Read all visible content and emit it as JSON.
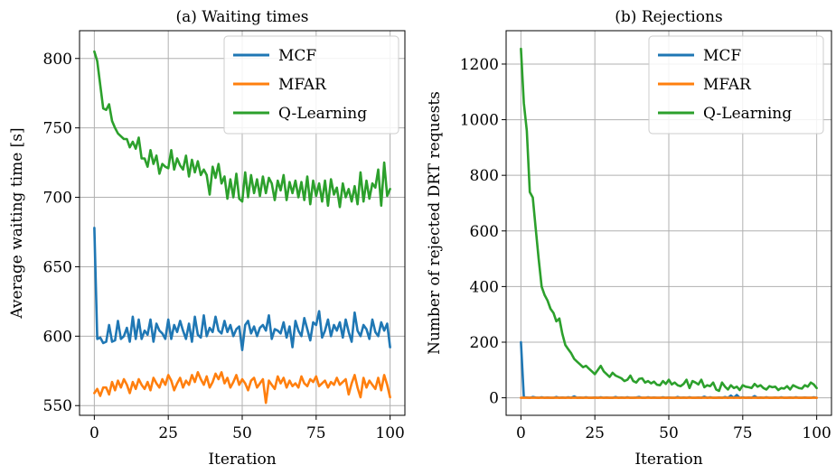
{
  "colors": {
    "MCF": "#1f77b4",
    "MFAR": "#ff7f0e",
    "Q-Learning": "#2ca02c"
  },
  "chart_data": [
    {
      "type": "line",
      "title": "(a) Waiting times",
      "xlabel": "Iteration",
      "ylabel": "Average waiting time [s]",
      "xlim": [
        -5,
        105
      ],
      "ylim": [
        543,
        820
      ],
      "xticks": [
        0,
        25,
        50,
        75,
        100
      ],
      "yticks": [
        550,
        600,
        650,
        700,
        750,
        800
      ],
      "grid": true,
      "legend": "top-right",
      "series": [
        {
          "name": "MCF",
          "values": [
            678,
            598,
            599,
            595,
            596,
            608,
            596,
            597,
            611,
            598,
            600,
            606,
            596,
            614,
            598,
            612,
            598,
            604,
            601,
            612,
            596,
            609,
            604,
            602,
            598,
            612,
            598,
            608,
            603,
            611,
            604,
            598,
            609,
            596,
            614,
            601,
            599,
            615,
            600,
            606,
            603,
            614,
            604,
            602,
            611,
            603,
            608,
            600,
            605,
            607,
            590,
            608,
            611,
            602,
            607,
            600,
            606,
            608,
            604,
            615,
            598,
            605,
            604,
            602,
            610,
            599,
            607,
            592,
            611,
            604,
            600,
            613,
            605,
            597,
            610,
            608,
            618,
            599,
            604,
            612,
            600,
            608,
            604,
            610,
            599,
            612,
            603,
            596,
            617,
            604,
            600,
            608,
            605,
            598,
            612,
            603,
            600,
            610,
            604,
            609,
            592
          ]
        },
        {
          "name": "MFAR",
          "values": [
            559,
            562,
            557,
            563,
            563,
            558,
            567,
            561,
            568,
            563,
            569,
            565,
            559,
            567,
            562,
            569,
            565,
            562,
            567,
            561,
            570,
            566,
            563,
            569,
            565,
            572,
            568,
            561,
            566,
            570,
            563,
            568,
            565,
            572,
            567,
            574,
            569,
            565,
            571,
            563,
            567,
            573,
            569,
            574,
            566,
            570,
            563,
            567,
            572,
            565,
            569,
            566,
            561,
            568,
            570,
            563,
            566,
            569,
            552,
            568,
            565,
            562,
            571,
            566,
            570,
            563,
            568,
            564,
            566,
            563,
            571,
            566,
            564,
            569,
            567,
            571,
            564,
            566,
            568,
            563,
            567,
            565,
            570,
            565,
            567,
            569,
            558,
            566,
            572,
            563,
            556,
            570,
            563,
            568,
            565,
            562,
            570,
            561,
            572,
            565,
            556
          ]
        },
        {
          "name": "Q-Learning",
          "values": [
            805,
            798,
            781,
            764,
            763,
            767,
            755,
            750,
            746,
            744,
            742,
            742,
            736,
            740,
            735,
            743,
            728,
            728,
            722,
            734,
            724,
            730,
            717,
            724,
            722,
            721,
            734,
            720,
            728,
            723,
            720,
            730,
            715,
            727,
            718,
            726,
            716,
            720,
            716,
            702,
            722,
            714,
            724,
            710,
            715,
            699,
            713,
            700,
            717,
            699,
            697,
            718,
            700,
            716,
            703,
            713,
            701,
            715,
            703,
            714,
            710,
            698,
            712,
            705,
            716,
            698,
            711,
            703,
            712,
            700,
            711,
            698,
            715,
            695,
            712,
            701,
            710,
            697,
            712,
            694,
            713,
            702,
            707,
            693,
            710,
            700,
            706,
            697,
            708,
            695,
            718,
            697,
            712,
            699,
            710,
            707,
            720,
            694,
            725,
            701,
            706
          ]
        }
      ]
    },
    {
      "type": "line",
      "title": "(b) Rejections",
      "xlabel": "Iteration",
      "ylabel": "Number of rejected DRT requests",
      "xlim": [
        -5,
        105
      ],
      "ylim": [
        -63,
        1320
      ],
      "xticks": [
        0,
        25,
        50,
        75,
        100
      ],
      "yticks": [
        0,
        200,
        400,
        600,
        800,
        1000,
        1200
      ],
      "grid": true,
      "legend": "top-right",
      "series": [
        {
          "name": "MCF",
          "values": [
            200,
            2,
            1,
            0,
            3,
            1,
            0,
            2,
            0,
            1,
            0,
            0,
            3,
            0,
            1,
            0,
            2,
            0,
            5,
            0,
            1,
            0,
            2,
            0,
            0,
            1,
            0,
            2,
            0,
            1,
            0,
            0,
            3,
            0,
            1,
            0,
            2,
            0,
            0,
            1,
            3,
            0,
            0,
            2,
            0,
            1,
            0,
            0,
            2,
            0,
            1,
            0,
            0,
            3,
            0,
            1,
            0,
            2,
            0,
            0,
            1,
            0,
            4,
            0,
            2,
            0,
            0,
            1,
            0,
            3,
            0,
            8,
            0,
            10,
            0,
            2,
            0,
            1,
            0,
            6,
            0,
            1,
            0,
            2,
            0,
            0,
            1,
            0,
            2,
            0,
            0,
            1,
            0,
            2,
            0,
            0,
            1,
            0,
            0,
            2,
            0
          ]
        },
        {
          "name": "MFAR",
          "values": [
            0,
            0,
            0,
            0,
            0,
            0,
            0,
            0,
            0,
            0,
            0,
            0,
            0,
            0,
            0,
            0,
            0,
            0,
            0,
            0,
            0,
            0,
            0,
            0,
            0,
            0,
            0,
            0,
            0,
            0,
            0,
            0,
            0,
            0,
            0,
            0,
            0,
            0,
            0,
            0,
            0,
            0,
            0,
            0,
            0,
            0,
            0,
            0,
            0,
            0,
            0,
            0,
            0,
            0,
            0,
            0,
            0,
            0,
            0,
            0,
            0,
            0,
            0,
            0,
            0,
            0,
            0,
            0,
            0,
            0,
            0,
            0,
            0,
            0,
            0,
            0,
            0,
            0,
            0,
            0,
            0,
            0,
            0,
            0,
            0,
            0,
            0,
            0,
            0,
            0,
            0,
            0,
            0,
            0,
            0,
            0,
            0,
            0,
            0,
            0,
            0
          ]
        },
        {
          "name": "Q-Learning",
          "values": [
            1255,
            1060,
            960,
            740,
            720,
            610,
            500,
            400,
            370,
            350,
            320,
            305,
            275,
            285,
            230,
            190,
            175,
            160,
            140,
            130,
            120,
            110,
            115,
            105,
            95,
            85,
            100,
            115,
            95,
            85,
            75,
            90,
            80,
            75,
            70,
            60,
            65,
            80,
            60,
            55,
            68,
            70,
            55,
            60,
            52,
            58,
            47,
            45,
            60,
            50,
            65,
            48,
            55,
            45,
            42,
            50,
            65,
            35,
            60,
            55,
            48,
            65,
            38,
            45,
            42,
            55,
            30,
            25,
            55,
            40,
            30,
            45,
            35,
            40,
            28,
            45,
            40,
            38,
            35,
            50,
            40,
            45,
            35,
            30,
            42,
            38,
            40,
            28,
            35,
            33,
            42,
            30,
            45,
            40,
            35,
            33,
            45,
            40,
            55,
            48,
            35
          ]
        }
      ]
    }
  ]
}
